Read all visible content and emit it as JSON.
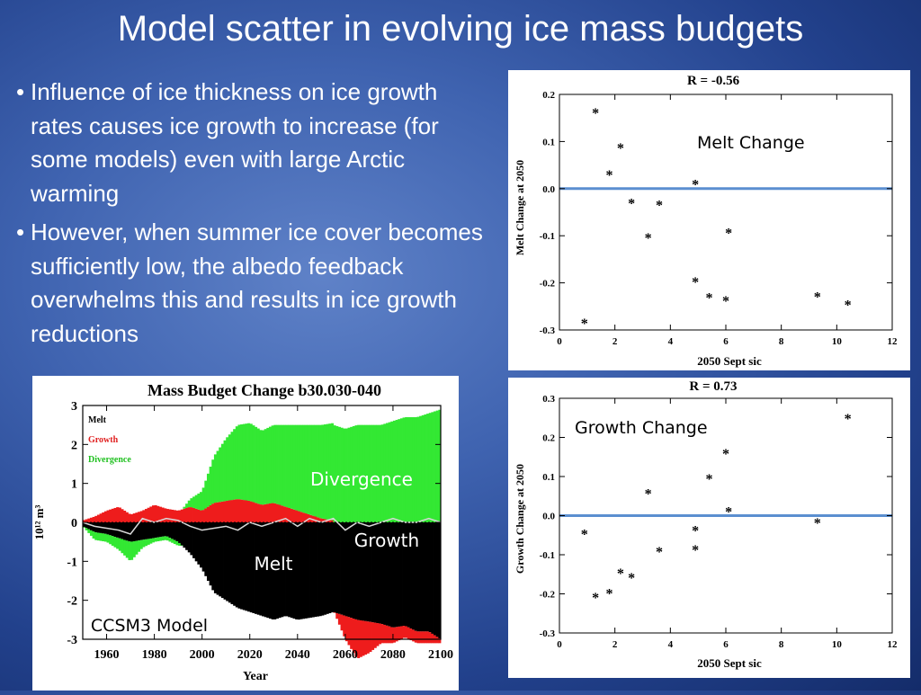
{
  "slide": {
    "title": "Model scatter in evolving ice mass budgets",
    "bullets": [
      {
        "marker": "•",
        "text": "Influence of ice thickness on ice growth rates causes ice growth to increase (for some models) even with large Arctic warming"
      },
      {
        "marker": "•",
        "text": "However, when summer ice cover becomes sufficiently low, the albedo feedback overwhelms this and results in ice growth reductions"
      }
    ]
  },
  "chart_data": [
    {
      "type": "area",
      "title": "Mass Budget Change b30.030-040",
      "xlabel": "Year",
      "ylabel": "10¹² m³",
      "xlim": [
        1950,
        2100
      ],
      "ylim": [
        -3,
        3
      ],
      "x_ticks": [
        "1960",
        "1980",
        "2000",
        "2020",
        "2040",
        "2060",
        "2080",
        "2100"
      ],
      "y_ticks": [
        "3",
        "2",
        "1",
        "0",
        "-1",
        "-2",
        "-3"
      ],
      "legend": [
        {
          "label": "Melt",
          "color": "#000000"
        },
        {
          "label": "Growth",
          "color": "#e02020"
        },
        {
          "label": "Divergence",
          "color": "#20c020"
        }
      ],
      "annotations": {
        "divergence": "Divergence",
        "growth": "Growth",
        "melt": "Melt",
        "model": "CCSM3 Model"
      },
      "colors": {
        "melt": "#000000",
        "growth": "#ee1c1c",
        "divergence": "#33e833",
        "net": "#d8d8d8"
      },
      "x": [
        1950,
        1955,
        1960,
        1965,
        1970,
        1975,
        1980,
        1985,
        1990,
        1995,
        2000,
        2005,
        2010,
        2015,
        2020,
        2025,
        2030,
        2035,
        2040,
        2045,
        2050,
        2055,
        2060,
        2065,
        2070,
        2075,
        2080,
        2085,
        2090,
        2095,
        2100
      ],
      "series": [
        {
          "name": "Melt",
          "values": [
            -0.1,
            -0.25,
            -0.3,
            -0.4,
            -0.5,
            -0.45,
            -0.4,
            -0.35,
            -0.5,
            -0.8,
            -1.2,
            -1.8,
            -2.0,
            -2.2,
            -2.3,
            -2.4,
            -2.5,
            -2.4,
            -2.5,
            -2.45,
            -2.4,
            -2.3,
            -2.4,
            -2.5,
            -2.55,
            -2.6,
            -2.7,
            -2.65,
            -2.8,
            -2.8,
            -3.0
          ]
        },
        {
          "name": "Growth",
          "values": [
            0.05,
            0.15,
            0.3,
            0.4,
            0.2,
            0.3,
            0.45,
            0.35,
            0.3,
            0.4,
            0.3,
            0.5,
            0.55,
            0.6,
            0.55,
            0.45,
            0.5,
            0.4,
            0.3,
            0.2,
            0.1,
            0.05,
            -0.6,
            -1.0,
            -0.8,
            -0.5,
            -0.4,
            -0.3,
            -0.3,
            -0.3,
            -0.1
          ]
        },
        {
          "name": "Divergence",
          "values": [
            0.0,
            -0.2,
            -0.2,
            -0.3,
            -0.5,
            -0.2,
            -0.1,
            -0.1,
            -0.1,
            0.2,
            0.5,
            1.2,
            1.6,
            1.9,
            2.0,
            1.9,
            2.0,
            2.1,
            2.2,
            2.3,
            2.4,
            2.5,
            2.4,
            2.5,
            2.5,
            2.5,
            2.6,
            2.7,
            2.7,
            2.8,
            2.9
          ]
        },
        {
          "name": "Net",
          "values": [
            0.0,
            -0.1,
            -0.15,
            -0.2,
            -0.3,
            0.1,
            0.0,
            0.1,
            0.05,
            -0.1,
            -0.2,
            -0.15,
            -0.1,
            -0.2,
            0.0,
            -0.1,
            0.0,
            0.1,
            -0.1,
            0.1,
            0.0,
            0.1,
            -0.2,
            0.0,
            -0.1,
            0.0,
            0.1,
            0.0,
            0.0,
            0.1,
            0.0
          ]
        }
      ]
    },
    {
      "type": "scatter",
      "title": "R = -0.56",
      "label": "Melt Change",
      "xlabel": "2050 Sept sic",
      "ylabel": "Melt Change at 2050",
      "xlim": [
        0,
        12
      ],
      "ylim": [
        -0.3,
        0.2
      ],
      "x_ticks": [
        "0",
        "2",
        "4",
        "6",
        "8",
        "10",
        "12"
      ],
      "y_ticks": [
        "0.2",
        "0.1",
        "0.0",
        "-0.1",
        "-0.2",
        "-0.3"
      ],
      "reference_line": 0,
      "line_color": "#5b8fd0",
      "points": [
        {
          "x": 0.9,
          "y": -0.285
        },
        {
          "x": 1.3,
          "y": 0.162
        },
        {
          "x": 1.8,
          "y": 0.03
        },
        {
          "x": 2.2,
          "y": 0.087
        },
        {
          "x": 2.6,
          "y": -0.03
        },
        {
          "x": 3.2,
          "y": -0.103
        },
        {
          "x": 3.6,
          "y": -0.034
        },
        {
          "x": 4.9,
          "y": 0.01
        },
        {
          "x": 4.9,
          "y": -0.197
        },
        {
          "x": 5.4,
          "y": -0.23
        },
        {
          "x": 6.0,
          "y": -0.237
        },
        {
          "x": 6.1,
          "y": -0.093
        },
        {
          "x": 9.3,
          "y": -0.228
        },
        {
          "x": 10.4,
          "y": -0.246
        }
      ]
    },
    {
      "type": "scatter",
      "title": "R =  0.73",
      "label": "Growth Change",
      "xlabel": "2050 Sept sic",
      "ylabel": "Growth Change at 2050",
      "xlim": [
        0,
        12
      ],
      "ylim": [
        -0.3,
        0.3
      ],
      "x_ticks": [
        "0",
        "2",
        "4",
        "6",
        "8",
        "10",
        "12"
      ],
      "y_ticks": [
        "0.3",
        "0.2",
        "0.1",
        "0.0",
        "-0.1",
        "-0.2",
        "-0.3"
      ],
      "reference_line": 0,
      "line_color": "#5b8fd0",
      "points": [
        {
          "x": 0.9,
          "y": -0.046
        },
        {
          "x": 1.3,
          "y": -0.208
        },
        {
          "x": 1.8,
          "y": -0.198
        },
        {
          "x": 2.2,
          "y": -0.146
        },
        {
          "x": 2.6,
          "y": -0.157
        },
        {
          "x": 3.2,
          "y": 0.058
        },
        {
          "x": 3.6,
          "y": -0.091
        },
        {
          "x": 4.9,
          "y": -0.037
        },
        {
          "x": 4.9,
          "y": -0.086
        },
        {
          "x": 5.4,
          "y": 0.095
        },
        {
          "x": 6.0,
          "y": 0.16
        },
        {
          "x": 6.1,
          "y": 0.012
        },
        {
          "x": 9.3,
          "y": -0.017
        },
        {
          "x": 10.4,
          "y": 0.25
        }
      ]
    }
  ]
}
